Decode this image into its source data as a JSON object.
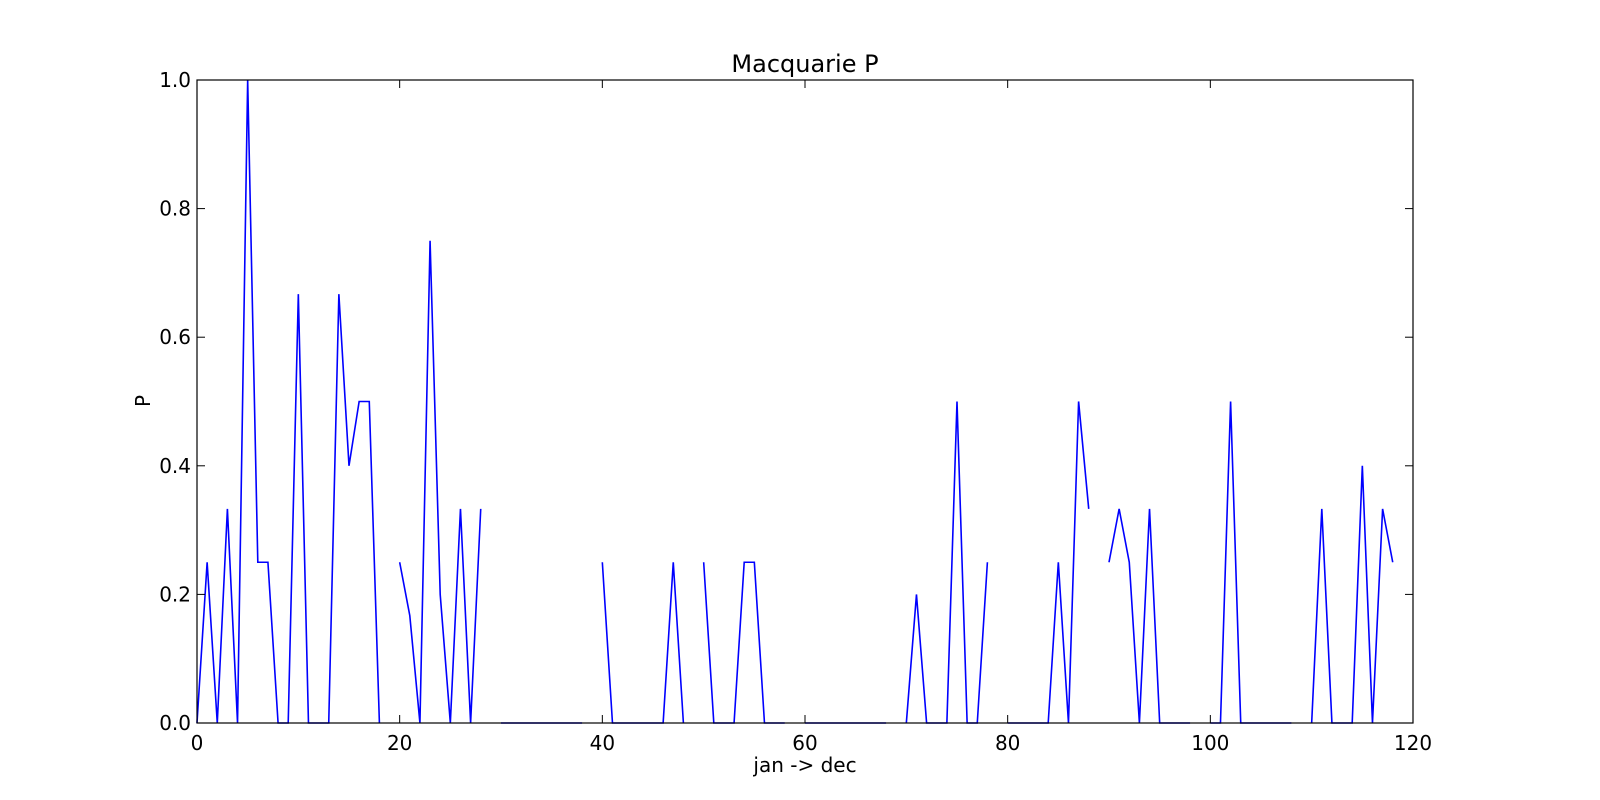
{
  "chart_data": {
    "type": "line",
    "title": "Macquarie P",
    "xlabel": "jan -> dec",
    "ylabel": "P",
    "xlim": [
      0,
      120
    ],
    "ylim": [
      0,
      1.0
    ],
    "x_ticks": [
      0,
      20,
      40,
      60,
      80,
      100,
      120
    ],
    "y_ticks": [
      0.0,
      0.2,
      0.4,
      0.6,
      0.8,
      1.0
    ],
    "x_tick_labels": [
      "0",
      "20",
      "40",
      "60",
      "80",
      "100",
      "120"
    ],
    "y_tick_labels": [
      "0.0",
      "0.2",
      "0.4",
      "0.6",
      "0.8",
      "1.0"
    ],
    "grid": false,
    "series": [
      {
        "color": "#0000ff",
        "values": [
          0,
          0.25,
          0,
          0.333,
          0,
          1.0,
          0.25,
          0.25,
          0,
          0,
          0.667,
          0,
          0,
          0,
          0.667,
          0.4,
          0.5,
          0.5,
          0,
          null,
          0.25,
          0.167,
          0,
          0.75,
          0.2,
          0,
          0.333,
          0,
          0.333,
          null,
          0,
          0,
          0,
          0,
          0,
          0,
          0,
          0,
          0,
          null,
          0.25,
          0,
          0,
          0,
          0,
          0,
          0,
          0.25,
          0,
          null,
          0.25,
          0,
          0,
          0,
          0.25,
          0.25,
          0,
          0,
          0,
          null,
          0,
          0,
          0,
          0,
          0,
          0,
          0,
          0,
          0,
          null,
          0,
          0.2,
          0,
          0,
          0,
          0.5,
          0,
          0,
          0.25,
          null,
          0,
          0,
          0,
          0,
          0,
          0.25,
          0,
          0.5,
          0.333,
          null,
          0.25,
          0.333,
          0.25,
          0,
          0.333,
          0,
          0,
          0,
          0,
          null,
          0,
          0,
          0.5,
          0,
          0,
          0,
          0,
          0,
          0,
          null,
          0,
          0.333,
          0,
          0,
          0,
          0.4,
          0,
          0.333,
          0.25
        ]
      }
    ]
  }
}
